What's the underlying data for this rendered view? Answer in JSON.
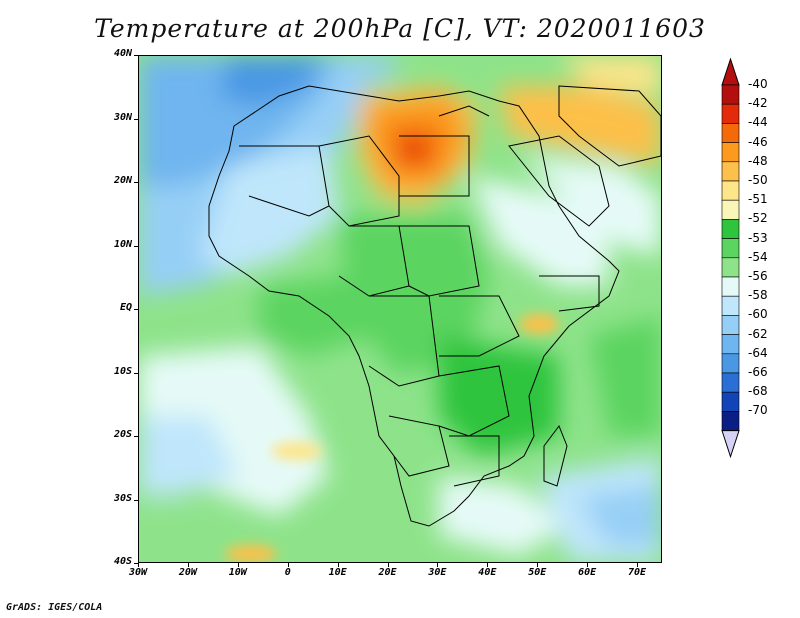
{
  "title": "Temperature at 200hPa [C], VT: 2020011603",
  "footer": "GrADS: IGES/COLA",
  "lat_labels": [
    "40N",
    "30N",
    "20N",
    "10N",
    "EQ",
    "10S",
    "20S",
    "30S",
    "40S"
  ],
  "lon_labels": [
    "30W",
    "20W",
    "10W",
    "0",
    "10E",
    "20E",
    "30E",
    "40E",
    "50E",
    "60E",
    "70E"
  ],
  "colorbar": {
    "labels": [
      "-40",
      "-42",
      "-44",
      "-46",
      "-48",
      "-50",
      "-51",
      "-52",
      "-53",
      "-54",
      "-56",
      "-58",
      "-60",
      "-62",
      "-64",
      "-66",
      "-68",
      "-70"
    ],
    "colors": [
      "#b40f0f",
      "#e32b0c",
      "#f46a0b",
      "#fb9a1f",
      "#fdc04a",
      "#fde58a",
      "#f9f6b8",
      "#2ec43d",
      "#5bd460",
      "#8ee38a",
      "#e5faf7",
      "#bfe6fb",
      "#96cff6",
      "#6fb5ef",
      "#4a97e4",
      "#2a6fd6",
      "#1244b8",
      "#0b1e86"
    ],
    "top_arrow_color": "#b40f0f",
    "bottom_arrow_color": "#d6d2f5"
  }
}
